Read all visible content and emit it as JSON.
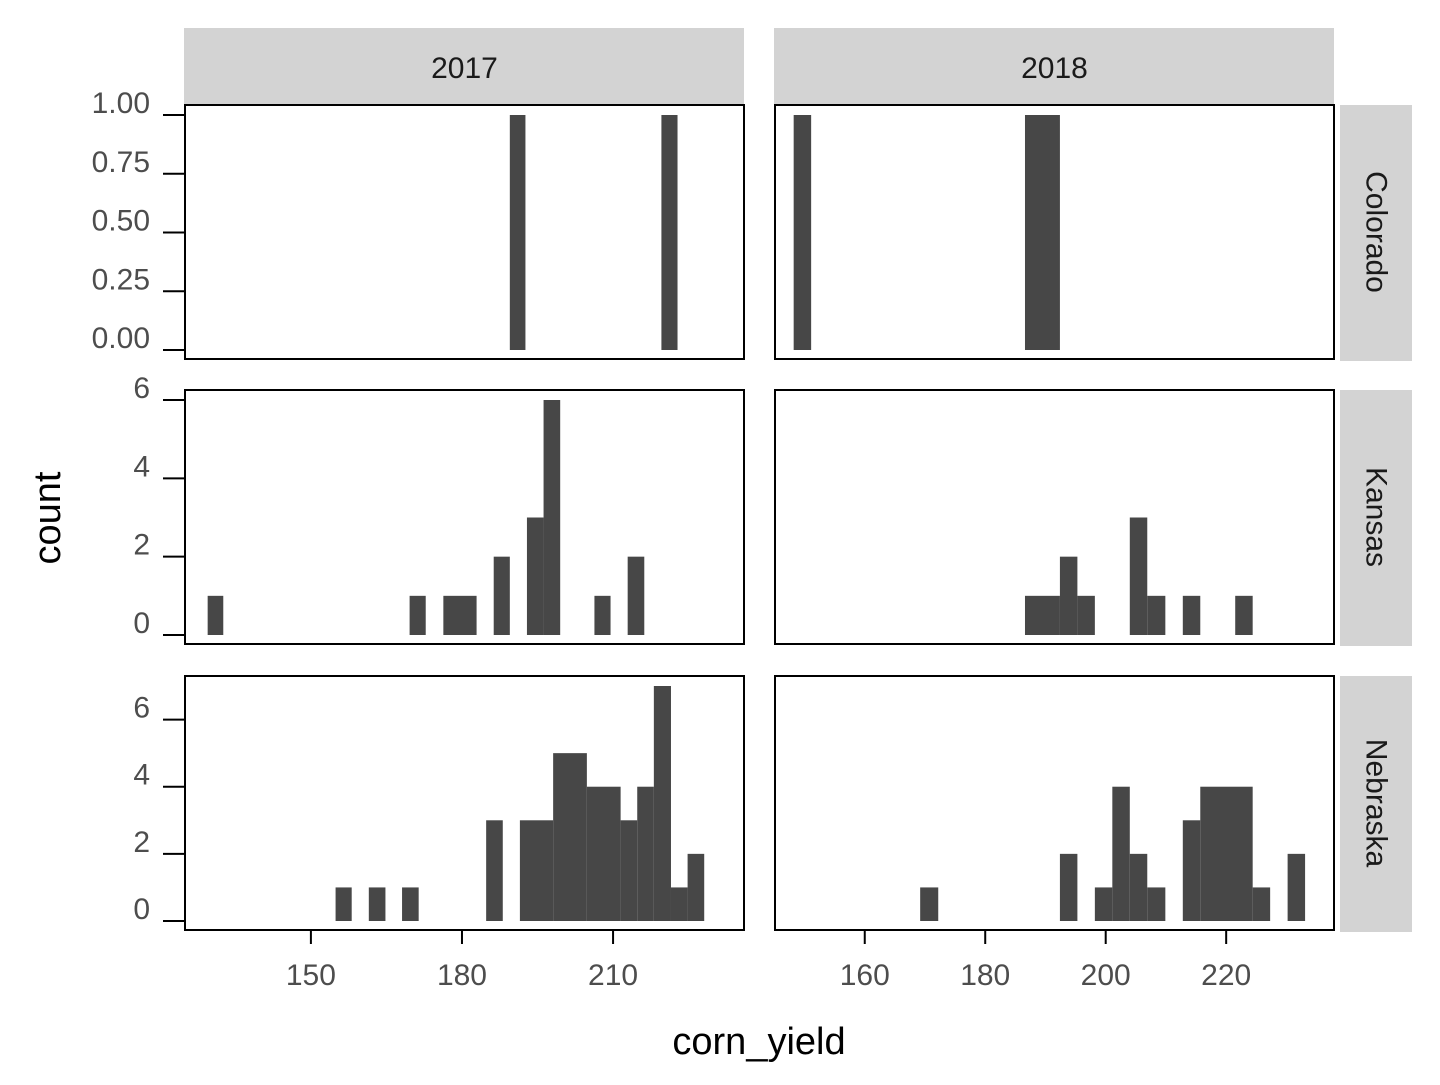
{
  "chart_data": {
    "type": "histogram",
    "facet_grid": true,
    "xlabel": "corn_yield",
    "ylabel": "count",
    "col_facets": [
      "2017",
      "2018"
    ],
    "row_facets": [
      "Colorado",
      "Kansas",
      "Nebraska"
    ],
    "scales": "free",
    "bar_color": "#474747",
    "strip_color": "#d3d3d3",
    "panels": [
      {
        "year": "2017",
        "state": "Colorado",
        "xlim": [
          125,
          236
        ],
        "ylim": [
          0,
          1
        ],
        "x_ticks": [],
        "y_ticks": [
          0,
          0.25,
          0.5,
          0.75,
          1
        ],
        "y_tick_labels": [
          "0.00",
          "0.25",
          "0.50",
          "0.75",
          "1.00"
        ],
        "bins": [
          {
            "x0": 189.5,
            "x1": 192.6,
            "count": 1
          },
          {
            "x0": 219.6,
            "x1": 222.8,
            "count": 1
          }
        ]
      },
      {
        "year": "2018",
        "state": "Colorado",
        "xlim": [
          145.1,
          237.9
        ],
        "ylim": [
          0,
          1
        ],
        "x_ticks": [],
        "y_ticks": [],
        "bins": [
          {
            "x0": 148.2,
            "x1": 151.1,
            "count": 1
          },
          {
            "x0": 186.6,
            "x1": 192.4,
            "count": 1
          }
        ]
      },
      {
        "year": "2017",
        "state": "Kansas",
        "xlim": [
          125,
          236
        ],
        "ylim": [
          0,
          6
        ],
        "x_ticks": [],
        "y_ticks": [
          0,
          2,
          4,
          6
        ],
        "y_tick_labels": [
          "0",
          "2",
          "4",
          "6"
        ],
        "bins": [
          {
            "x0": 129.5,
            "x1": 132.6,
            "count": 1
          },
          {
            "x0": 169.6,
            "x1": 172.8,
            "count": 1
          },
          {
            "x0": 176.3,
            "x1": 182.9,
            "count": 1
          },
          {
            "x0": 186.3,
            "x1": 189.5,
            "count": 2
          },
          {
            "x0": 192.9,
            "x1": 196.2,
            "count": 3
          },
          {
            "x0": 196.2,
            "x1": 199.5,
            "count": 6
          },
          {
            "x0": 206.3,
            "x1": 209.5,
            "count": 1
          },
          {
            "x0": 212.9,
            "x1": 216.2,
            "count": 2
          }
        ]
      },
      {
        "year": "2018",
        "state": "Kansas",
        "xlim": [
          145.1,
          237.9
        ],
        "ylim": [
          0,
          6
        ],
        "x_ticks": [],
        "y_ticks": [],
        "bins": [
          {
            "x0": 186.6,
            "x1": 192.4,
            "count": 1
          },
          {
            "x0": 192.4,
            "x1": 195.3,
            "count": 2
          },
          {
            "x0": 195.3,
            "x1": 198.2,
            "count": 1
          },
          {
            "x0": 204.0,
            "x1": 206.9,
            "count": 3
          },
          {
            "x0": 206.9,
            "x1": 209.9,
            "count": 1
          },
          {
            "x0": 212.8,
            "x1": 215.7,
            "count": 1
          },
          {
            "x0": 221.5,
            "x1": 224.4,
            "count": 1
          }
        ]
      },
      {
        "year": "2017",
        "state": "Nebraska",
        "xlim": [
          125,
          236
        ],
        "ylim": [
          0,
          7
        ],
        "x_ticks": [
          150,
          180,
          210
        ],
        "y_ticks": [
          0,
          2,
          4,
          6
        ],
        "y_tick_labels": [
          "0",
          "2",
          "4",
          "6"
        ],
        "bins": [
          {
            "x0": 154.9,
            "x1": 158.1,
            "count": 1
          },
          {
            "x0": 161.5,
            "x1": 164.8,
            "count": 1
          },
          {
            "x0": 168.1,
            "x1": 171.4,
            "count": 1
          },
          {
            "x0": 184.8,
            "x1": 188.1,
            "count": 3
          },
          {
            "x0": 191.5,
            "x1": 198.1,
            "count": 3
          },
          {
            "x0": 198.1,
            "x1": 204.8,
            "count": 5
          },
          {
            "x0": 204.8,
            "x1": 211.5,
            "count": 4
          },
          {
            "x0": 211.5,
            "x1": 214.8,
            "count": 3
          },
          {
            "x0": 214.8,
            "x1": 218.1,
            "count": 4
          },
          {
            "x0": 218.1,
            "x1": 221.5,
            "count": 7
          },
          {
            "x0": 221.5,
            "x1": 224.8,
            "count": 1
          },
          {
            "x0": 224.8,
            "x1": 228.1,
            "count": 2
          }
        ]
      },
      {
        "year": "2018",
        "state": "Nebraska",
        "xlim": [
          145.1,
          237.9
        ],
        "ylim": [
          0,
          7
        ],
        "x_ticks": [
          160,
          180,
          200,
          220
        ],
        "y_ticks": [],
        "bins": [
          {
            "x0": 169.2,
            "x1": 172.2,
            "count": 1
          },
          {
            "x0": 192.4,
            "x1": 195.3,
            "count": 2
          },
          {
            "x0": 198.2,
            "x1": 201.1,
            "count": 1
          },
          {
            "x0": 201.1,
            "x1": 204.0,
            "count": 4
          },
          {
            "x0": 204.0,
            "x1": 206.9,
            "count": 2
          },
          {
            "x0": 206.9,
            "x1": 209.9,
            "count": 1
          },
          {
            "x0": 212.8,
            "x1": 215.7,
            "count": 3
          },
          {
            "x0": 215.7,
            "x1": 224.4,
            "count": 4
          },
          {
            "x0": 224.4,
            "x1": 227.3,
            "count": 1
          },
          {
            "x0": 230.2,
            "x1": 233.1,
            "count": 2
          }
        ]
      }
    ]
  }
}
